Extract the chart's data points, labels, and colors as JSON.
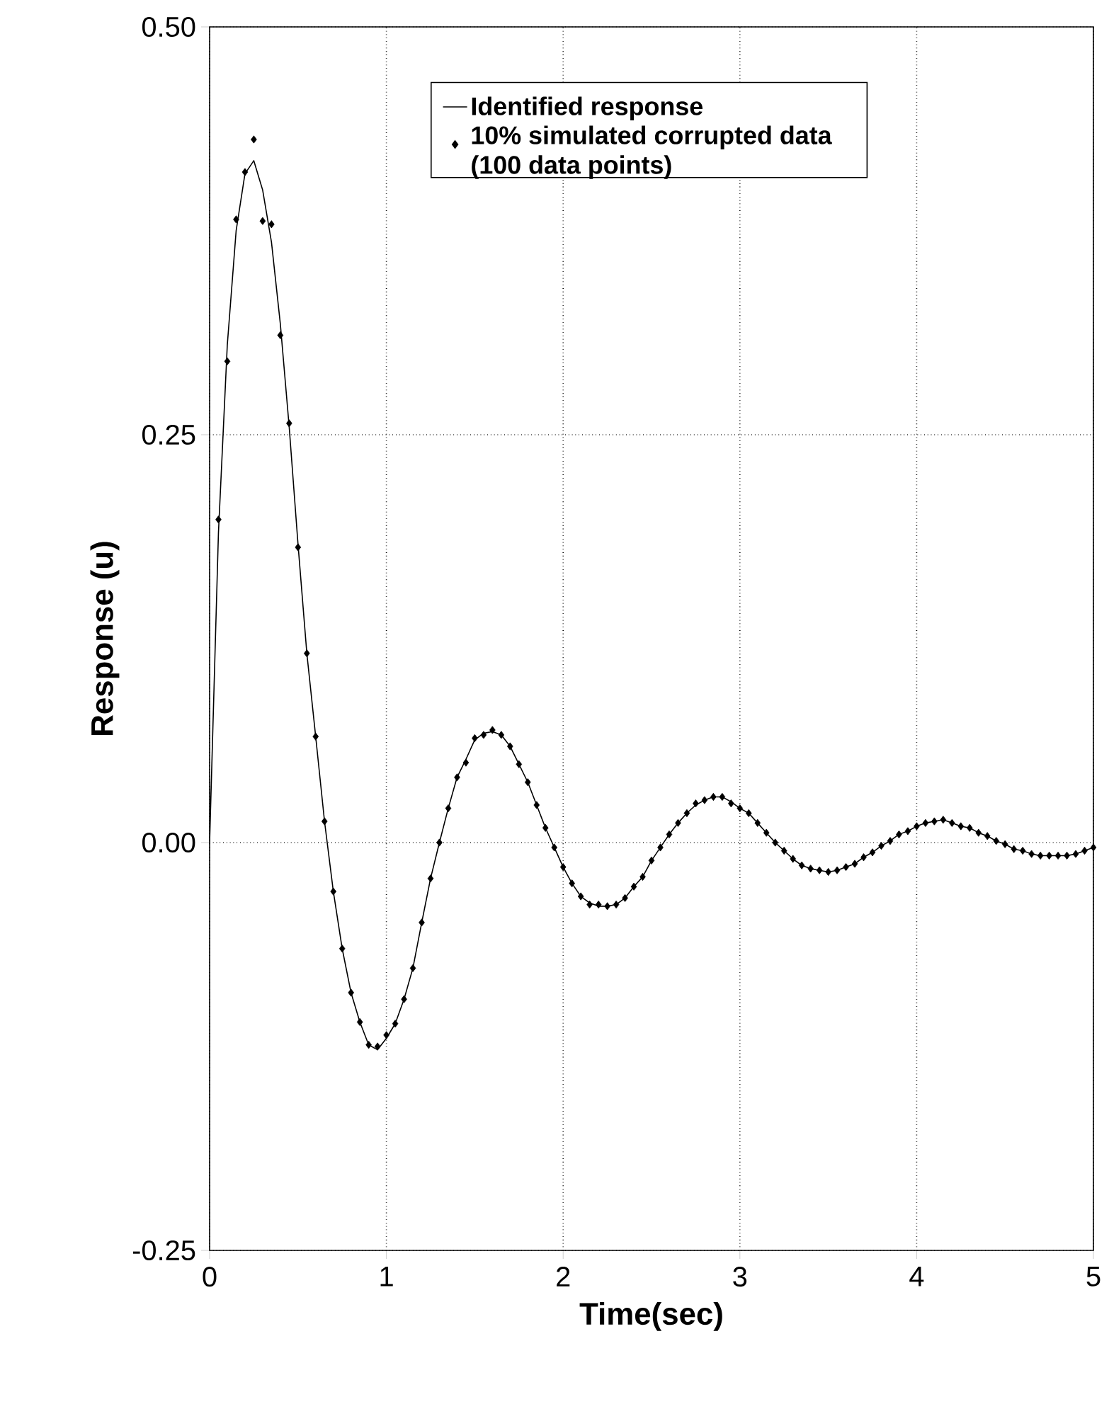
{
  "chart_data": {
    "type": "line",
    "xlabel": "Time(sec)",
    "ylabel": "Response (u)",
    "xlim": [
      0,
      5
    ],
    "ylim": [
      -0.25,
      0.5
    ],
    "xticks": [
      0,
      1,
      2,
      3,
      4,
      5
    ],
    "yticks": [
      {
        "value": -0.25,
        "label": "-0.25"
      },
      {
        "value": 0,
        "label": "0.00"
      },
      {
        "value": 0.25,
        "label": "0.25"
      },
      {
        "value": 0.5,
        "label": "0.50"
      }
    ],
    "grid": true,
    "legend": "top right",
    "line_style": "solid",
    "series": [
      {
        "name": "Identified response",
        "color": "#000000",
        "marker": "none",
        "x": [
          0,
          0.05,
          0.1,
          0.15,
          0.2,
          0.25,
          0.3,
          0.35,
          0.4,
          0.45,
          0.5,
          0.55,
          0.6,
          0.65,
          0.7,
          0.75,
          0.8,
          0.85,
          0.9,
          0.95,
          1.0,
          1.05,
          1.1,
          1.15,
          1.2,
          1.25,
          1.3,
          1.35,
          1.4,
          1.45,
          1.5,
          1.55,
          1.6,
          1.65,
          1.7,
          1.75,
          1.8,
          1.85,
          1.9,
          1.95,
          2.0,
          2.05,
          2.1,
          2.15,
          2.2,
          2.25,
          2.3,
          2.35,
          2.4,
          2.45,
          2.5,
          2.55,
          2.6,
          2.65,
          2.7,
          2.75,
          2.8,
          2.85,
          2.9,
          2.95,
          3.0,
          3.05,
          3.1,
          3.15,
          3.2,
          3.25,
          3.3,
          3.35,
          3.4,
          3.45,
          3.5,
          3.55,
          3.6,
          3.65,
          3.7,
          3.75,
          3.8,
          3.85,
          3.9,
          3.95,
          4.0,
          4.05,
          4.1,
          4.15,
          4.2,
          4.25,
          4.3,
          4.35,
          4.4,
          4.45,
          4.5,
          4.55,
          4.6,
          4.65,
          4.7,
          4.75,
          4.8,
          4.85,
          4.9,
          4.95,
          5.0
        ],
        "values": [
          0,
          0.19,
          0.305,
          0.375,
          0.41,
          0.418,
          0.4,
          0.368,
          0.318,
          0.255,
          0.183,
          0.116,
          0.065,
          0.013,
          -0.03,
          -0.065,
          -0.092,
          -0.11,
          -0.124,
          -0.127,
          -0.12,
          -0.111,
          -0.096,
          -0.077,
          -0.049,
          -0.022,
          0.0,
          0.021,
          0.04,
          0.051,
          0.063,
          0.067,
          0.068,
          0.066,
          0.059,
          0.048,
          0.037,
          0.023,
          0.009,
          -0.003,
          -0.015,
          -0.025,
          -0.033,
          -0.037,
          -0.039,
          -0.039,
          -0.038,
          -0.034,
          -0.027,
          -0.021,
          -0.011,
          -0.003,
          0.005,
          0.012,
          0.018,
          0.023,
          0.026,
          0.028,
          0.028,
          0.025,
          0.021,
          0.018,
          0.012,
          0.006,
          0.0,
          -0.005,
          -0.01,
          -0.014,
          -0.016,
          -0.017,
          -0.018,
          -0.017,
          -0.015,
          -0.013,
          -0.009,
          -0.006,
          -0.002,
          0.001,
          0.005,
          0.007,
          0.01,
          0.012,
          0.013,
          0.014,
          0.012,
          0.01,
          0.009,
          0.006,
          0.004,
          0.001,
          -0.001,
          -0.004,
          -0.005,
          -0.007,
          -0.008,
          -0.008,
          -0.008,
          -0.008,
          -0.007,
          -0.005,
          -0.003
        ]
      },
      {
        "name": "10% simulated corrupted data (100 data points)",
        "type": "scatter",
        "color": "#000000",
        "marker": "diamond",
        "x": [
          0.05,
          0.1,
          0.15,
          0.2,
          0.25,
          0.3,
          0.35,
          0.4,
          0.45,
          0.5,
          0.55,
          0.6,
          0.65,
          0.7,
          0.75,
          0.8,
          0.85,
          0.9,
          0.95,
          1.0,
          1.05,
          1.1,
          1.15,
          1.2,
          1.25,
          1.3,
          1.35,
          1.4,
          1.45,
          1.5,
          1.55,
          1.6,
          1.65,
          1.7,
          1.75,
          1.8,
          1.85,
          1.9,
          1.95,
          2.0,
          2.05,
          2.1,
          2.15,
          2.2,
          2.25,
          2.3,
          2.35,
          2.4,
          2.45,
          2.5,
          2.55,
          2.6,
          2.65,
          2.7,
          2.75,
          2.8,
          2.85,
          2.9,
          2.95,
          3.0,
          3.05,
          3.1,
          3.15,
          3.2,
          3.25,
          3.3,
          3.35,
          3.4,
          3.45,
          3.5,
          3.55,
          3.6,
          3.65,
          3.7,
          3.75,
          3.8,
          3.85,
          3.9,
          3.95,
          4.0,
          4.05,
          4.1,
          4.15,
          4.2,
          4.25,
          4.3,
          4.35,
          4.4,
          4.45,
          4.5,
          4.55,
          4.6,
          4.65,
          4.7,
          4.75,
          4.8,
          4.85,
          4.9,
          4.95,
          5.0
        ],
        "values": [
          0.198,
          0.295,
          0.382,
          0.411,
          0.431,
          0.381,
          0.379,
          0.311,
          0.257,
          0.181,
          0.116,
          0.065,
          0.013,
          -0.03,
          -0.065,
          -0.092,
          -0.11,
          -0.124,
          -0.125,
          -0.118,
          -0.111,
          -0.096,
          -0.077,
          -0.049,
          -0.022,
          0.0,
          0.021,
          0.04,
          0.049,
          0.064,
          0.066,
          0.069,
          0.066,
          0.059,
          0.048,
          0.037,
          0.023,
          0.009,
          -0.003,
          -0.015,
          -0.025,
          -0.033,
          -0.038,
          -0.038,
          -0.039,
          -0.038,
          -0.034,
          -0.027,
          -0.021,
          -0.011,
          -0.003,
          0.005,
          0.012,
          0.018,
          0.024,
          0.026,
          0.028,
          0.028,
          0.024,
          0.021,
          0.018,
          0.012,
          0.006,
          0.0,
          -0.005,
          -0.01,
          -0.014,
          -0.016,
          -0.017,
          -0.018,
          -0.017,
          -0.015,
          -0.013,
          -0.009,
          -0.006,
          -0.002,
          0.001,
          0.005,
          0.007,
          0.01,
          0.012,
          0.013,
          0.014,
          0.012,
          0.01,
          0.009,
          0.006,
          0.004,
          0.001,
          -0.001,
          -0.004,
          -0.005,
          -0.007,
          -0.008,
          -0.008,
          -0.008,
          -0.008,
          -0.007,
          -0.005,
          -0.003
        ]
      }
    ]
  }
}
